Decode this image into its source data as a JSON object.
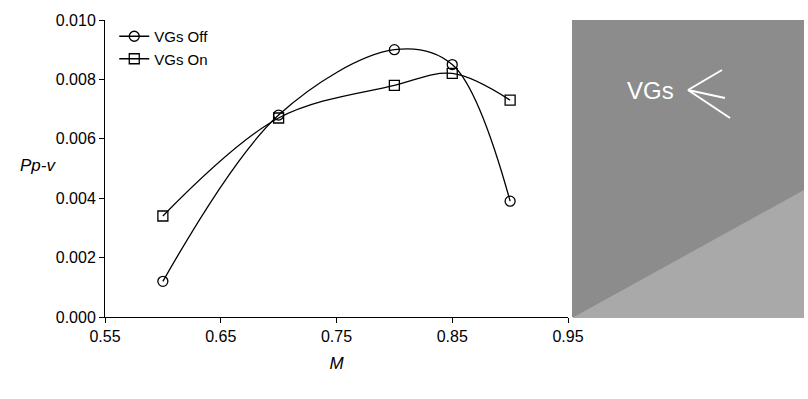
{
  "chart_data": {
    "type": "line",
    "x_label": "M",
    "y_label": "Pp-v",
    "xlim": [
      0.55,
      0.95
    ],
    "xticks": [
      0.55,
      0.65,
      0.75,
      0.85,
      0.95
    ],
    "ylim": [
      0,
      0.01
    ],
    "yticks": [
      {
        "value": 0,
        "label": "0.000"
      },
      {
        "value": 0.002,
        "label": "0.002"
      },
      {
        "value": 0.004,
        "label": "0.004"
      },
      {
        "value": 0.006,
        "label": "0.006"
      },
      {
        "value": 0.008,
        "label": "0.008"
      },
      {
        "value": 0.01,
        "label": "0.010"
      }
    ],
    "grid": false,
    "legend": "top-left",
    "line_style": "smooth",
    "series": [
      {
        "name": "VGs Off",
        "color": "#000000",
        "marker": "circle-open",
        "x": [
          0.6,
          0.7,
          0.8,
          0.85,
          0.9
        ],
        "values": [
          0.0012,
          0.0068,
          0.009,
          0.0085,
          0.0039
        ]
      },
      {
        "name": "VGs On",
        "color": "#000000",
        "marker": "square-open",
        "x": [
          0.6,
          0.7,
          0.8,
          0.85,
          0.9
        ],
        "values": [
          0.0034,
          0.0067,
          0.0078,
          0.0082,
          0.0073
        ]
      }
    ],
    "annotations": [
      {
        "text": "VGs"
      }
    ]
  }
}
